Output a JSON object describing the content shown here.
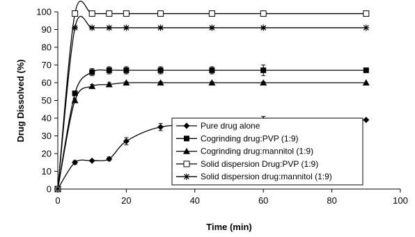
{
  "chart_data": {
    "type": "line",
    "xlabel": "Time (min)",
    "ylabel": "Drug Dissolved (%)",
    "xlim": [
      0,
      100
    ],
    "ylim": [
      0,
      100
    ],
    "xticks": [
      "0",
      "20",
      "40",
      "60",
      "80",
      "100"
    ],
    "yticks": [
      "0",
      "10",
      "20",
      "30",
      "40",
      "50",
      "60",
      "70",
      "80",
      "90",
      "100"
    ],
    "grid": false,
    "legend_position": "lower-right",
    "series": [
      {
        "name": "Pure drug alone",
        "marker": "diamond",
        "x": [
          0,
          5,
          10,
          15,
          20,
          30,
          45,
          60,
          90
        ],
        "y": [
          0,
          15,
          16,
          17,
          27,
          35,
          37,
          39,
          39
        ],
        "err": [
          0,
          1,
          0.5,
          1,
          2,
          2,
          2,
          2,
          0
        ]
      },
      {
        "name": "Cogrinding drug:PVP (1:9)",
        "marker": "square-filled",
        "x": [
          0,
          5,
          10,
          15,
          20,
          30,
          45,
          60,
          90
        ],
        "y": [
          0,
          54,
          66,
          67,
          67,
          67,
          67,
          67,
          67
        ],
        "err": [
          0,
          1,
          2,
          2,
          2,
          2,
          2,
          3,
          0
        ]
      },
      {
        "name": "Cogrinding drug:mannitol (1:9)",
        "marker": "triangle",
        "x": [
          0,
          5,
          10,
          15,
          20,
          30,
          45,
          60,
          90
        ],
        "y": [
          0,
          50,
          58,
          59,
          60,
          60,
          60,
          60,
          60
        ],
        "err": [
          0,
          1,
          1,
          1,
          0.5,
          0.5,
          0.5,
          0.5,
          0
        ]
      },
      {
        "name": "Solid dispersion Drug:PVP (1:9)",
        "marker": "square-open",
        "x": [
          0,
          5,
          10,
          15,
          20,
          30,
          45,
          60,
          90
        ],
        "y": [
          0,
          99,
          99,
          99,
          99,
          99,
          99,
          99,
          99
        ],
        "err": [
          0,
          1,
          1,
          1,
          1,
          1,
          1,
          1,
          1
        ]
      },
      {
        "name": "Solid dispersion drug:mannitol (1:9)",
        "marker": "star",
        "x": [
          0,
          5,
          10,
          15,
          20,
          30,
          45,
          60,
          90
        ],
        "y": [
          0,
          91,
          91,
          91,
          91,
          91,
          91,
          91,
          91
        ],
        "err": [
          0,
          0.5,
          0.5,
          0.5,
          0.5,
          0.5,
          0.5,
          0.5,
          0
        ]
      }
    ]
  }
}
